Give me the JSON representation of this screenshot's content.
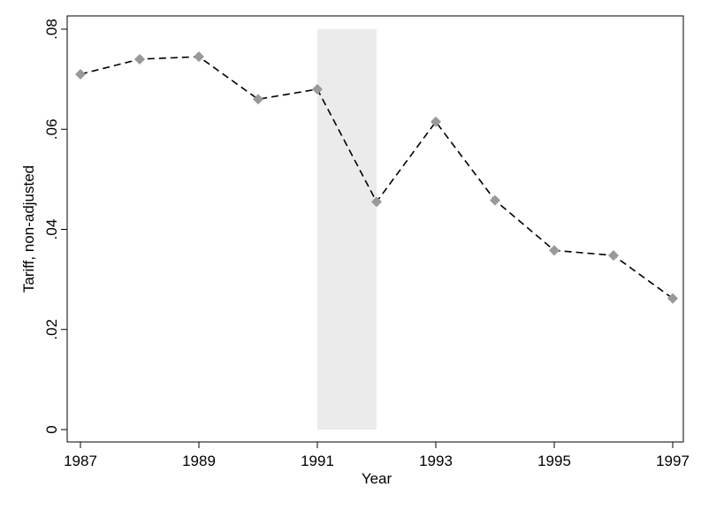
{
  "chart_data": {
    "type": "line",
    "xlabel": "Year",
    "ylabel": "Tariff, non-adjusted",
    "x": [
      1987,
      1988,
      1989,
      1990,
      1991,
      1992,
      1993,
      1994,
      1995,
      1996,
      1997
    ],
    "series": [
      {
        "values": [
          0.071,
          0.074,
          0.0745,
          0.066,
          0.068,
          0.0455,
          0.0615,
          0.0458,
          0.0358,
          0.0348,
          0.0262
        ],
        "line_style": "dashed",
        "line_color": "#000000",
        "marker": "diamond",
        "marker_color": "#999999"
      }
    ],
    "shaded_region": {
      "x_start": 1991,
      "x_end": 1992,
      "y_start": 0,
      "y_end": 0.08,
      "color": "#ebebeb"
    },
    "xlim": [
      1987,
      1997
    ],
    "ylim": [
      0,
      0.08
    ],
    "xticks": [
      1987,
      1989,
      1991,
      1993,
      1995,
      1997
    ],
    "xtick_labels": [
      "1987",
      "1989",
      "1991",
      "1993",
      "1995",
      "1997"
    ],
    "yticks": [
      0,
      0.02,
      0.04,
      0.06,
      0.08
    ],
    "ytick_labels": [
      "0",
      ".02",
      ".04",
      ".06",
      ".08"
    ],
    "grid": false,
    "legend": "none"
  }
}
